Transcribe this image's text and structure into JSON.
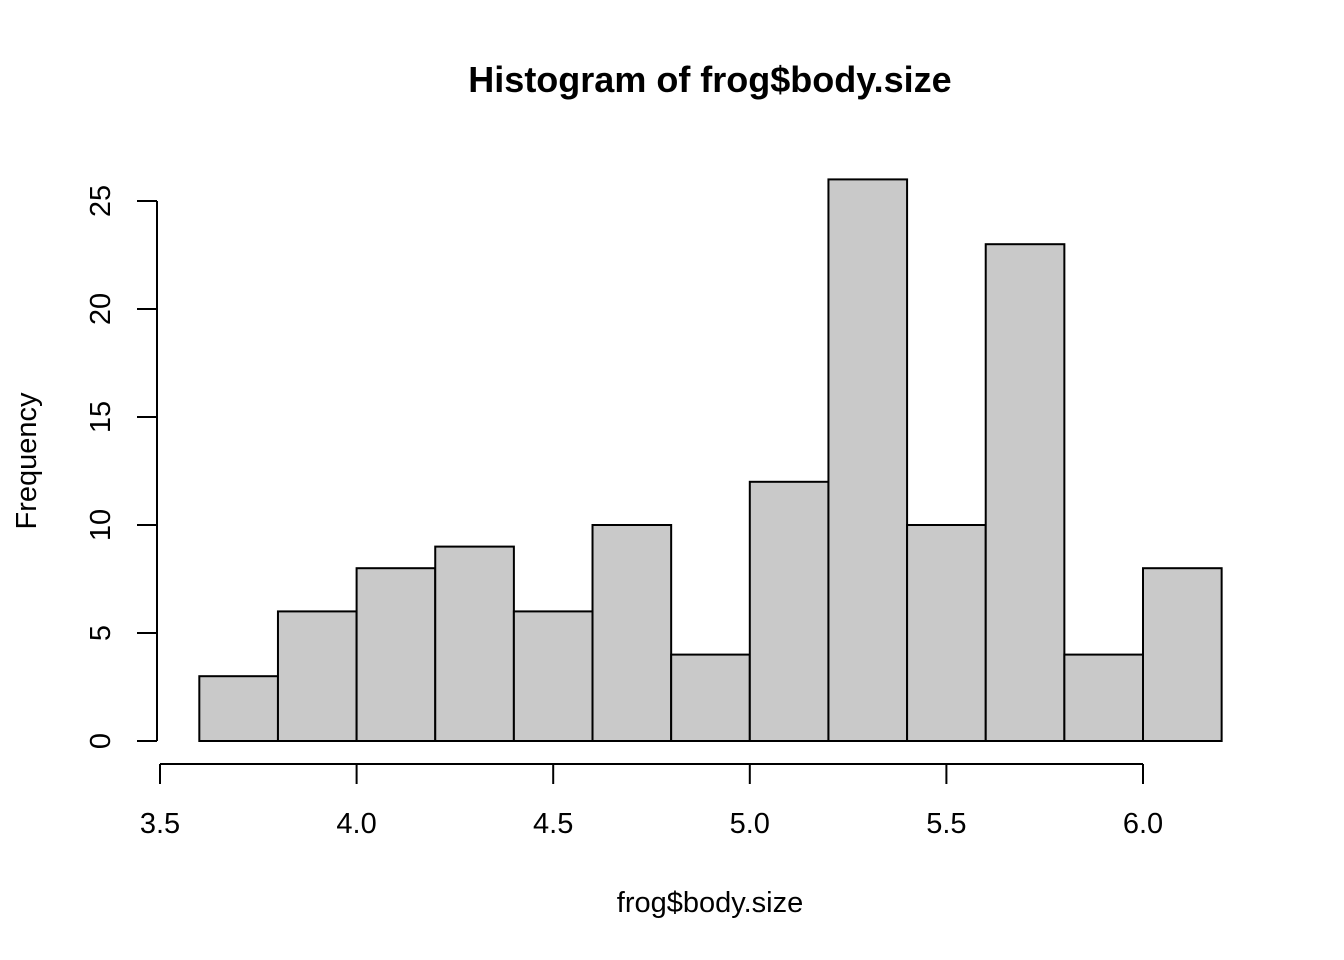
{
  "chart_data": {
    "type": "bar",
    "title": "Histogram of frog$body.size",
    "xlabel": "frog$body.size",
    "ylabel": "Frequency",
    "bin_edges": [
      3.6,
      3.8,
      4.0,
      4.2,
      4.4,
      4.6,
      4.8,
      5.0,
      5.2,
      5.4,
      5.6,
      5.8,
      6.0,
      6.2
    ],
    "values": [
      3,
      6,
      8,
      9,
      6,
      10,
      4,
      12,
      26,
      10,
      23,
      4,
      8
    ],
    "xlim": [
      3.5,
      6.2
    ],
    "ylim": [
      0,
      25
    ],
    "x_ticks": [
      3.5,
      4.0,
      4.5,
      5.0,
      5.5,
      6.0
    ],
    "x_tick_labels": [
      "3.5",
      "4.0",
      "4.5",
      "5.0",
      "5.5",
      "6.0"
    ],
    "y_ticks": [
      0,
      5,
      10,
      15,
      20,
      25
    ],
    "y_tick_labels": [
      "0",
      "5",
      "10",
      "15",
      "20",
      "25"
    ],
    "grid": false,
    "colors": {
      "bar_fill": "#c9c9c9",
      "bar_stroke": "#000000"
    }
  }
}
